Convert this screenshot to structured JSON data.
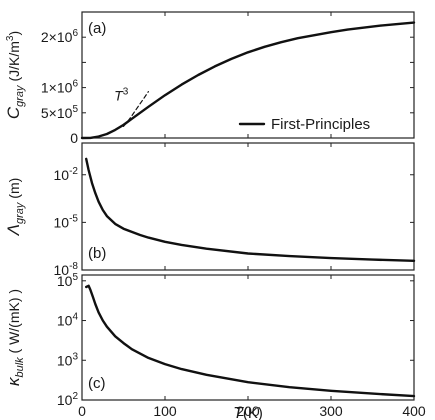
{
  "chart_data": [
    {
      "panel": "(a)",
      "type": "line",
      "ylabel_main": "C",
      "ylabel_sub": "gray",
      "ylabel_unit": " (J/K/m",
      "ylabel_unit_sup": "3",
      "ylabel_unit_close": ")",
      "yscale": "linear",
      "ylim": [
        0,
        2500000
      ],
      "yticks": [
        {
          "value": 0,
          "base": "0",
          "exp": ""
        },
        {
          "value": 500000,
          "base": "5×10",
          "exp": "5"
        },
        {
          "value": 1000000,
          "base": "1×10",
          "exp": "6"
        },
        {
          "value": 1500000,
          "base": "",
          "exp": ""
        },
        {
          "value": 2000000,
          "base": "2×10",
          "exp": "6"
        }
      ],
      "series": [
        {
          "name": "First-Principles",
          "style": "solid",
          "x": [
            0,
            10,
            20,
            30,
            40,
            50,
            60,
            70,
            80,
            100,
            120,
            140,
            160,
            180,
            200,
            220,
            240,
            260,
            280,
            300,
            320,
            340,
            360,
            380,
            400
          ],
          "y": [
            0,
            1000,
            30000,
            80000,
            160000,
            260000,
            380000,
            500000,
            620000,
            850000,
            1060000,
            1250000,
            1420000,
            1570000,
            1700000,
            1810000,
            1900000,
            1980000,
            2040000,
            2100000,
            2150000,
            2190000,
            2230000,
            2260000,
            2290000
          ]
        },
        {
          "name": "T3",
          "style": "dashed",
          "x": [
            50,
            55,
            60,
            65,
            70,
            75,
            80
          ],
          "y": [
            230000,
            330000,
            440000,
            560000,
            680000,
            800000,
            920000
          ]
        }
      ],
      "annotation": {
        "base": "T",
        "sup": "3",
        "x": 58,
        "y": 820000
      },
      "legend": {
        "label": "First-Principles",
        "position": "bottom-right"
      }
    },
    {
      "panel": "(b)",
      "type": "line",
      "ylabel_main": "Λ",
      "ylabel_sub": "gray",
      "ylabel_unit": " (m)",
      "yscale": "log",
      "ylim": [
        1e-08,
        1
      ],
      "yticks": [
        {
          "value": 0.01,
          "base": "10",
          "exp": "-2"
        },
        {
          "value": 1e-05,
          "base": "10",
          "exp": "-5"
        },
        {
          "value": 1e-08,
          "base": "10",
          "exp": "-8"
        }
      ],
      "series": [
        {
          "name": "First-Principles",
          "style": "solid",
          "x": [
            5,
            8,
            12,
            16,
            20,
            25,
            30,
            40,
            50,
            60,
            70,
            80,
            100,
            120,
            150,
            200,
            250,
            300,
            350,
            400
          ],
          "y": [
            0.1,
            0.02,
            0.003,
            0.0007,
            0.0002,
            6e-05,
            2.5e-05,
            8e-06,
            4e-06,
            2.5e-06,
            1.6e-06,
            1.1e-06,
            6e-07,
            3.8e-07,
            2.2e-07,
            1.1e-07,
            7.5e-08,
            5.6e-08,
            4.5e-08,
            3.8e-08
          ]
        }
      ]
    },
    {
      "panel": "(c)",
      "type": "line",
      "ylabel_main": "κ",
      "ylabel_sub": "bulk",
      "ylabel_unit": " ( W/(mK) )",
      "yscale": "log",
      "ylim": [
        100,
        140000
      ],
      "yticks": [
        {
          "value": 100,
          "base": "10",
          "exp": "2"
        },
        {
          "value": 1000,
          "base": "10",
          "exp": "3"
        },
        {
          "value": 10000,
          "base": "10",
          "exp": "4"
        },
        {
          "value": 100000,
          "base": "10",
          "exp": "5"
        }
      ],
      "series": [
        {
          "name": "First-Principles",
          "style": "solid",
          "x": [
            5,
            8,
            10,
            13,
            16,
            20,
            25,
            30,
            40,
            50,
            60,
            80,
            100,
            120,
            150,
            200,
            250,
            300,
            350,
            400
          ],
          "y": [
            70000,
            75000,
            60000,
            40000,
            26000,
            16000,
            10000,
            7000,
            4000,
            2700,
            1900,
            1150,
            800,
            600,
            430,
            280,
            210,
            170,
            145,
            125
          ]
        }
      ]
    }
  ],
  "xaxis": {
    "label_base": "T",
    "label_unit": "(K)",
    "lim": [
      0,
      400
    ],
    "ticks": [
      0,
      100,
      200,
      300,
      400
    ],
    "tick_labels": [
      "0",
      "100",
      "200",
      "300",
      "400"
    ]
  }
}
